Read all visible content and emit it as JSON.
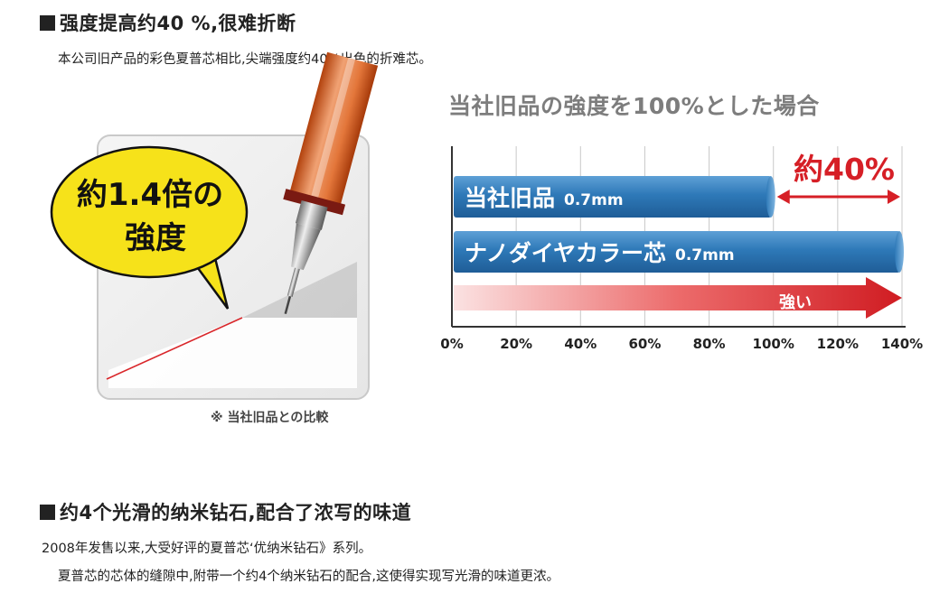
{
  "section1": {
    "heading": "强度提高约40 %,很难折断",
    "subtext": "本公司旧产品的彩色夏普芯相比,尖端强度约40%出色的折难芯。"
  },
  "illustration": {
    "bubble_line1": "約1.4倍の",
    "bubble_line2": "強度",
    "footnote": "※ 当社旧品との比較"
  },
  "chart_data": {
    "type": "bar",
    "orientation": "horizontal",
    "title": "当社旧品の強度を100%とした場合",
    "x_ticks": [
      "0%",
      "20%",
      "40%",
      "60%",
      "80%",
      "100%",
      "120%",
      "140%"
    ],
    "xlim": [
      0,
      140
    ],
    "grid": true,
    "categories": [
      "当社旧品",
      "ナノダイヤカラー芯"
    ],
    "size_labels": [
      "0.7mm",
      "0.7mm"
    ],
    "values": [
      100,
      140
    ],
    "annotation": "約40%",
    "arrow_label": "強い",
    "colors": {
      "bar": "#2d78b8",
      "accent": "#d61f26",
      "axis": "#333333",
      "grid": "#c8c8c8"
    }
  },
  "section2": {
    "heading": "约4个光滑的纳米钻石,配合了浓写的味道",
    "subtext1": "2008年发售以来,大受好评的夏普芯‘优纳米钻石》系列。",
    "subtext2": "夏普芯的芯体的缝隙中,附带一个约4个纳米钻石的配合,这使得实现写光滑的味道更浓。"
  }
}
